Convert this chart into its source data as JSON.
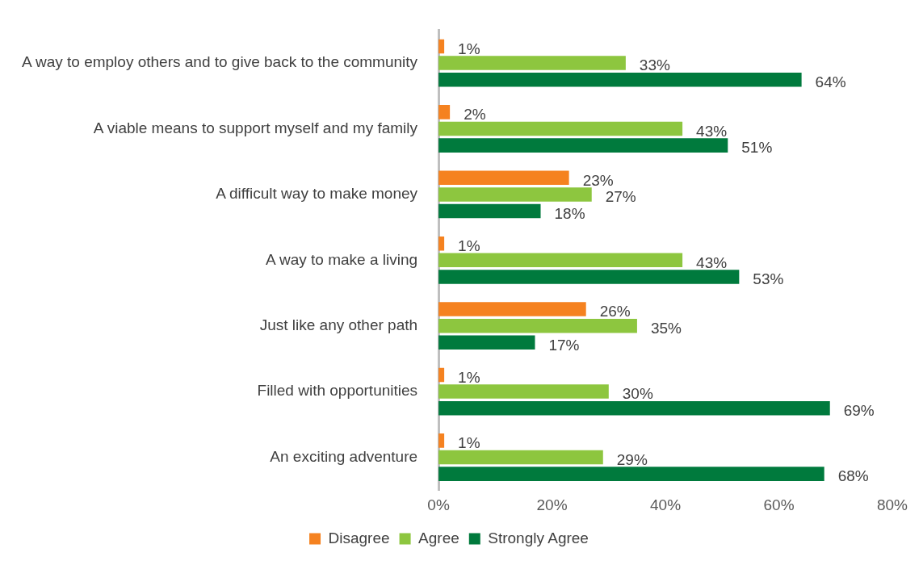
{
  "chart_data": {
    "type": "bar",
    "orientation": "horizontal",
    "categories": [
      "A way to employ others and to give back to the community",
      "A viable means to support myself and my family",
      "A difficult way to make money",
      "A way to make a living",
      "Just like any other path",
      "Filled with opportunities",
      "An exciting adventure"
    ],
    "series": [
      {
        "name": "Disagree",
        "color": "#f58220",
        "values": [
          1,
          2,
          23,
          1,
          26,
          1,
          1
        ],
        "value_labels": [
          "1%",
          "2%",
          "23%",
          "1%",
          "26%",
          "1%",
          "1%"
        ]
      },
      {
        "name": "Agree",
        "color": "#8dc63f",
        "values": [
          33,
          43,
          27,
          43,
          35,
          30,
          29
        ],
        "value_labels": [
          "33%",
          "43%",
          "27%",
          "43%",
          "35%",
          "30%",
          "29%"
        ]
      },
      {
        "name": "Strongly Agree",
        "color": "#007a3d",
        "values": [
          64,
          51,
          18,
          53,
          17,
          69,
          68
        ],
        "value_labels": [
          "64%",
          "51%",
          "18%",
          "53%",
          "17%",
          "69%",
          "68%"
        ]
      }
    ],
    "xlim": [
      0,
      80
    ],
    "xticks": [
      {
        "value": 0,
        "label": "0%"
      },
      {
        "value": 20,
        "label": "20%"
      },
      {
        "value": 40,
        "label": "40%"
      },
      {
        "value": 60,
        "label": "60%"
      },
      {
        "value": 80,
        "label": "80%"
      }
    ],
    "grid": false,
    "legend": "bottom"
  }
}
